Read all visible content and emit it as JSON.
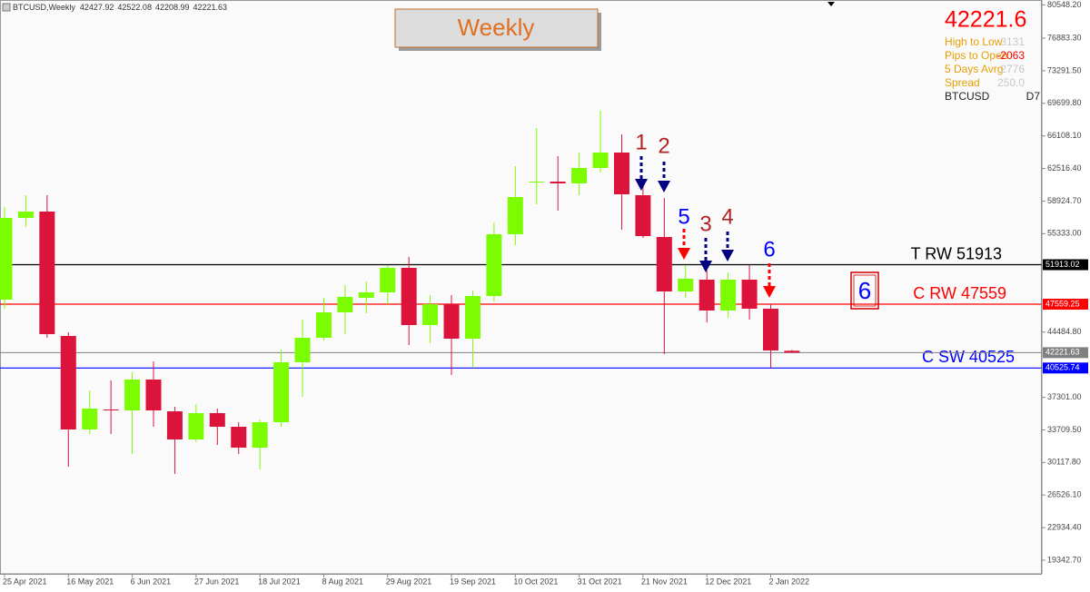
{
  "header": {
    "symbol": "BTCUSD,Weekly"
  },
  "title_box": "Weekly",
  "info": {
    "price": "42221.6",
    "rows": [
      {
        "label": "High to Low",
        "value": 3131
      },
      {
        "label": "Pips to Open",
        "value": -2063
      },
      {
        "label": "5 Days Avrg",
        "value": 2776
      },
      {
        "label": "Spread",
        "value": "250.0"
      }
    ],
    "symbol": "BTCUSD",
    "timeframe": "D7"
  },
  "signal_box": "6",
  "chart_data": {
    "type": "candlestick",
    "x": [
      "25 Apr 2021",
      null,
      null,
      "16 May 2021",
      null,
      null,
      "6 Jun 2021",
      null,
      null,
      "27 Jun 2021",
      null,
      null,
      "18 Jul 2021",
      null,
      null,
      "8 Aug 2021",
      null,
      null,
      "29 Aug 2021",
      null,
      null,
      "19 Sep 2021",
      null,
      null,
      "10 Oct 2021",
      null,
      null,
      "31 Oct 2021",
      null,
      null,
      "21 Nov 2021",
      null,
      null,
      "12 Dec 2021",
      null,
      null,
      "2 Jan 2022",
      null
    ],
    "series": {
      "up_color": "#7cfc00",
      "down_color": "#dc143c",
      "open": [
        48063,
        57069,
        57770,
        44060,
        33753,
        35954,
        35854,
        39257,
        35754,
        32652,
        35554,
        34053,
        31752,
        34553,
        41158,
        43860,
        46662,
        48263,
        48863,
        51565,
        45261,
        47563,
        43760,
        48463,
        55268,
        61072,
        61072,
        60872,
        62573,
        64274,
        59571,
        54968,
        48963,
        50265,
        46863,
        50265,
        47062,
        42427.92
      ],
      "high": [
        58270,
        59571,
        59571,
        44460,
        38056,
        39157,
        40058,
        41258,
        36254,
        36555,
        36054,
        34553,
        34854,
        42559,
        45862,
        48263,
        49664,
        50064,
        51866,
        52766,
        48563,
        48563,
        49064,
        56569,
        62773,
        66976,
        63874,
        64274,
        68877,
        66276,
        61272,
        59271,
        51866,
        51265,
        51065,
        51866,
        47563,
        42522.08
      ],
      "low": [
        47062,
        56068,
        43860,
        29650,
        33253,
        33253,
        31051,
        34053,
        28849,
        32352,
        32052,
        31051,
        29350,
        34053,
        37355,
        43560,
        44260,
        46562,
        47563,
        43060,
        43260,
        39757,
        40558,
        47863,
        54067,
        58570,
        57870,
        59571,
        62073,
        55768,
        54868,
        42059,
        48263,
        45562,
        46062,
        45862,
        40558,
        42208.99
      ],
      "close": [
        57069,
        57770,
        44260,
        33753,
        36054,
        35854,
        39257,
        35854,
        32652,
        35554,
        34053,
        31752,
        34553,
        41158,
        43860,
        46662,
        48363,
        48863,
        51565,
        45261,
        47563,
        43760,
        48463,
        55268,
        59371,
        61072,
        60872,
        62573,
        64274,
        59671,
        55068,
        48963,
        50365,
        46863,
        50265,
        47062,
        42459,
        42221.63
      ]
    },
    "ylim": [
      17842,
      81086
    ],
    "yticks": [
      {
        "value": 80548.2,
        "label": "80548.20"
      },
      {
        "value": 76883.3,
        "label": "76883.30"
      },
      {
        "value": 73291.5,
        "label": "73291.50"
      },
      {
        "value": 69699.8,
        "label": "69699.80"
      },
      {
        "value": 66108.1,
        "label": "66108.10"
      },
      {
        "value": 62516.4,
        "label": "62516.40"
      },
      {
        "value": 58924.7,
        "label": "58924.70"
      },
      {
        "value": 55333,
        "label": "55333.00"
      },
      {
        "value": 44484.8,
        "label": "44484.80"
      },
      {
        "value": 37301,
        "label": "37301.00"
      },
      {
        "value": 33709.5,
        "label": "33709.50"
      },
      {
        "value": 30117.8,
        "label": "30117.80"
      },
      {
        "value": 26526.1,
        "label": "26526.10"
      },
      {
        "value": 22934.4,
        "label": "22934.40"
      },
      {
        "value": 19342.7,
        "label": "19342.70"
      }
    ],
    "levels": [
      {
        "name": "T RW 51913",
        "value": 51913.02,
        "label": "51913.02",
        "color": "#000000"
      },
      {
        "name": "C RW 47559",
        "value": 47559.25,
        "label": "47559.25",
        "color": "#ff0000"
      },
      {
        "name": "C SW 40525",
        "value": 40525.74,
        "label": "40525.74",
        "color": "#0000ff"
      }
    ],
    "price_line_color": "#808080",
    "annotations": [
      {
        "text": "1",
        "color": "#b22222",
        "arrow_color": "#000080"
      },
      {
        "text": "2",
        "color": "#b22222",
        "arrow_color": "#000080"
      },
      {
        "text": "5",
        "color": "#0000ff",
        "arrow_color": "#ff0000"
      },
      {
        "text": "3",
        "color": "#b22222",
        "arrow_color": "#000080"
      },
      {
        "text": "4",
        "color": "#b22222",
        "arrow_color": "#000080"
      },
      {
        "text": "6",
        "color": "#0000ff",
        "arrow_color": "#ff0000"
      }
    ]
  }
}
